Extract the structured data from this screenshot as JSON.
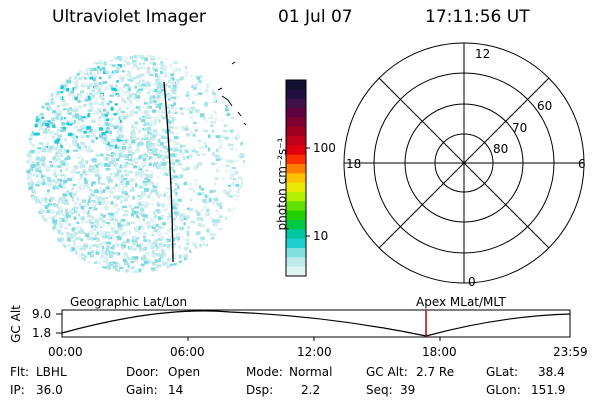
{
  "header": {
    "instrument": "Ultraviolet Imager",
    "date": "01 Jul 07",
    "time": "17:11:56 UT"
  },
  "colorbar": {
    "unit_label": "photon cm⁻²s⁻¹",
    "ticks": [
      "100",
      "10"
    ],
    "colors": [
      "#101030",
      "#201040",
      "#40104a",
      "#600040",
      "#800030",
      "#a00020",
      "#c00018",
      "#e00010",
      "#ff3000",
      "#ff8000",
      "#ffc000",
      "#e8e800",
      "#b0f000",
      "#60e000",
      "#20d000",
      "#00c840",
      "#00c8a0",
      "#20d0d0",
      "#80e0e0",
      "#c0ecec",
      "#e0f4f4"
    ]
  },
  "polar_plot": {
    "labels": {
      "top": "12",
      "bottom": "0",
      "left": "18",
      "right": "6",
      "lat60": "60",
      "lat70": "70",
      "lat80": "80"
    }
  },
  "altitude_panel": {
    "axis_title": "GC Alt",
    "tick_high": "9.0",
    "tick_low": "1.8",
    "label_left": "Geographic Lat/Lon",
    "label_right": "Apex MLat/MLT",
    "time_ticks": [
      "00:00",
      "06:00",
      "12:00",
      "18:00",
      "23:59"
    ],
    "current_time_marker": "17:11:56",
    "marker_color": "#c00000"
  },
  "info": {
    "flt_label": "Flt:",
    "flt_value": "LBHL",
    "ip_label": "IP:",
    "ip_value": "36.0",
    "door_label": "Door:",
    "door_value": "Open",
    "gain_label": "Gain:",
    "gain_value": "14",
    "mode_label": "Mode:",
    "mode_value": "Normal",
    "dsp_label": "Dsp:",
    "dsp_value": "2.2",
    "gcalt_label": "GC Alt:",
    "gcalt_value": "2.7 Re",
    "seq_label": "Seq:",
    "seq_value": "39",
    "glat_label": "GLat:",
    "glat_value": "38.4",
    "glon_label": "GLon:",
    "glon_value": "151.9"
  },
  "image_style": {
    "speckle_colors": [
      "#d8f0f0",
      "#c4eaea",
      "#e6f6f6",
      "#a8e4e8",
      "#7fd8e0"
    ],
    "hot_spot_color": "#20c8d8"
  }
}
